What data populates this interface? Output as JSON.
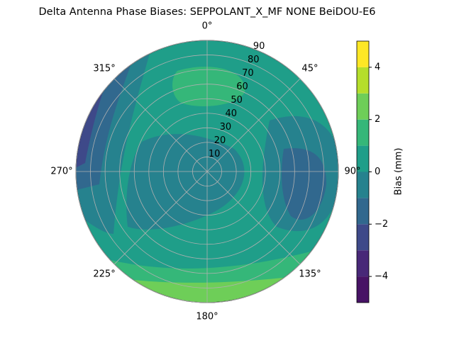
{
  "chart_data": {
    "type": "polar_contour",
    "title": "Delta Antenna Phase Biases: SEPPOLANT_X_MF  NONE BeiDOU-E6",
    "rlim": [
      0,
      90
    ],
    "rticks": [
      10,
      20,
      30,
      40,
      50,
      60,
      70,
      80,
      90
    ],
    "thetaticks": [
      {
        "value": 0,
        "label": "0°"
      },
      {
        "value": 45,
        "label": "45°"
      },
      {
        "value": 90,
        "label": "90°"
      },
      {
        "value": 135,
        "label": "135°"
      },
      {
        "value": 180,
        "label": "180°"
      },
      {
        "value": 225,
        "label": "225°"
      },
      {
        "value": 270,
        "label": "270°"
      },
      {
        "value": 315,
        "label": "315°"
      }
    ],
    "colorbar": {
      "label": "Bias (mm)",
      "levels": [
        -5,
        -4,
        -3,
        -2,
        -1,
        0,
        1,
        2,
        3,
        4,
        5
      ],
      "colors": [
        "#471365",
        "#482878",
        "#3e4989",
        "#31688e",
        "#26828e",
        "#1f9e89",
        "#35b779",
        "#6ece58",
        "#b5de2b",
        "#fde725"
      ],
      "clim": [
        -5,
        5
      ],
      "ticks": [
        {
          "value": -4,
          "label": "−4"
        },
        {
          "value": -2,
          "label": "−2"
        },
        0,
        2,
        4
      ]
    },
    "grid": true
  }
}
